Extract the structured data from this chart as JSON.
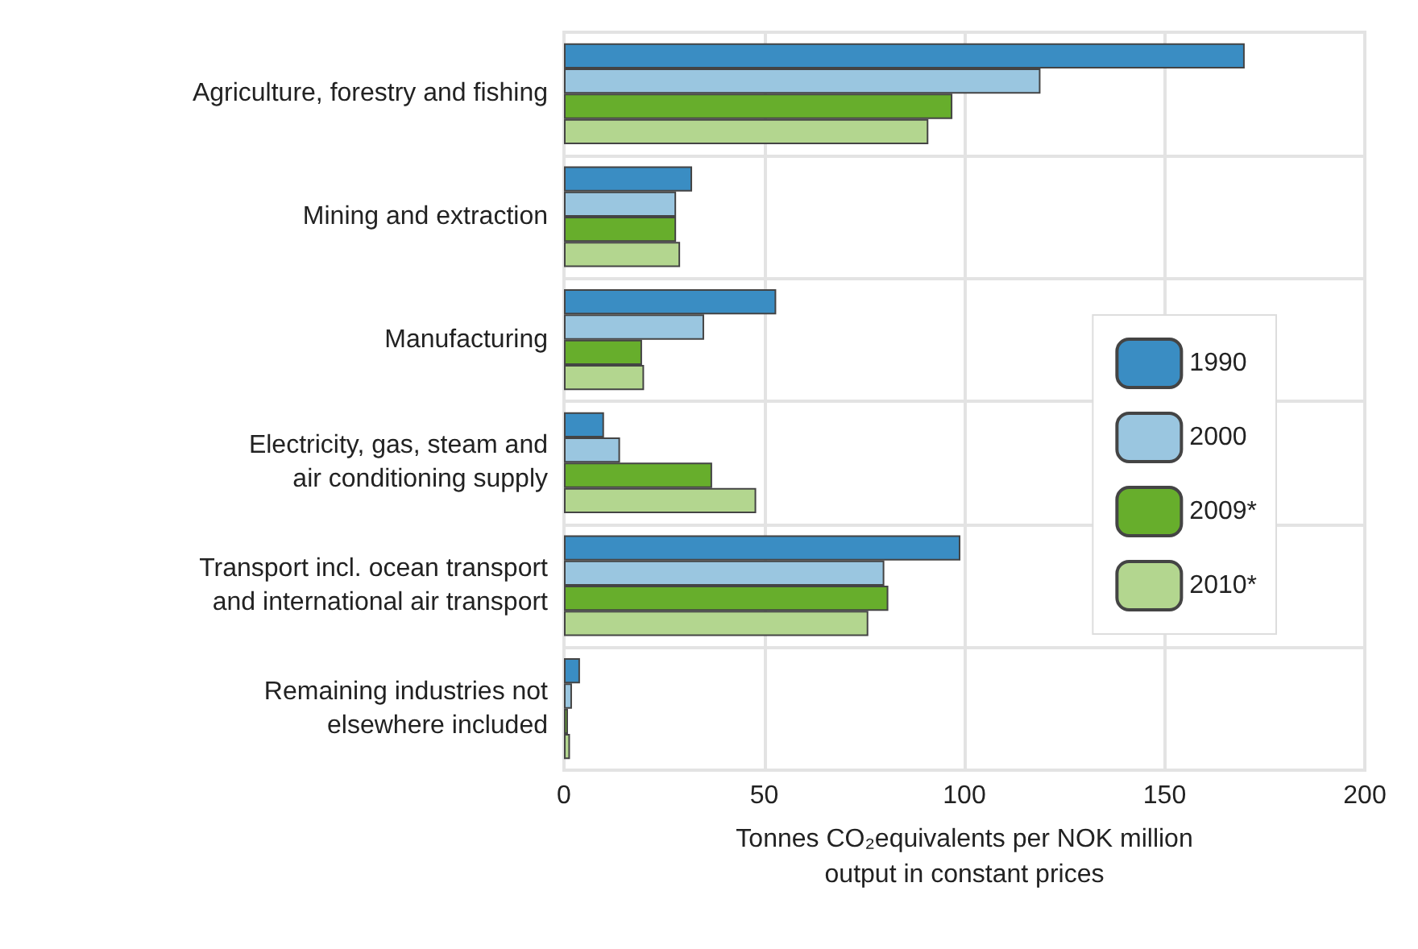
{
  "chart_data": {
    "type": "bar",
    "orientation": "horizontal",
    "xlabel": "Tonnes CO₂equivalents per NOK million\noutput in constant prices",
    "categories": [
      "Agriculture, forestry and fishing",
      "Mining and extraction",
      "Manufacturing",
      "Electricity, gas, steam and\nair conditioning supply",
      "Transport incl. ocean transport\nand international air transport",
      "Remaining industries not\nelsewhere included"
    ],
    "series": [
      {
        "name": "1990",
        "color": "#3a8dc3",
        "values": [
          170,
          32,
          53,
          10,
          99,
          4
        ]
      },
      {
        "name": "2000",
        "color": "#9ac6e0",
        "values": [
          119,
          28,
          35,
          14,
          80,
          2
        ]
      },
      {
        "name": "2009*",
        "color": "#67ae2c",
        "values": [
          97,
          28,
          19.5,
          37,
          81,
          1
        ]
      },
      {
        "name": "2010*",
        "color": "#b3d68f",
        "values": [
          91,
          29,
          20,
          48,
          76,
          1.5
        ]
      }
    ],
    "xlim": [
      0,
      200
    ],
    "xticks": [
      0,
      50,
      100,
      150,
      200
    ],
    "grid": true,
    "legend": "right"
  }
}
